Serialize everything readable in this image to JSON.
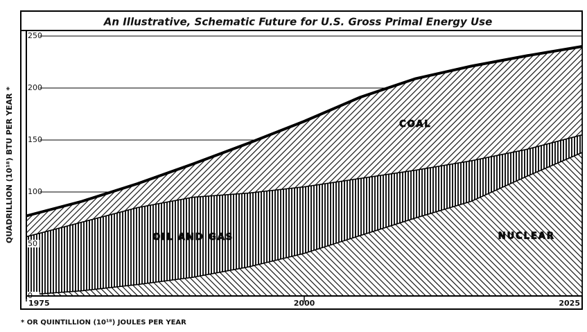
{
  "chart_data": {
    "type": "stacked_area",
    "title": "An Illustrative, Schematic Future for U.S. Gross Primal Energy Use",
    "y_label": "QUADRILLION (10¹⁸) BTU PER YEAR *",
    "footnote": "* OR QUINTILLION (10¹⁸) JOULES PER YEAR",
    "x": [
      1975,
      1980,
      1985,
      1990,
      1995,
      2000,
      2005,
      2010,
      2015,
      2020,
      2025
    ],
    "series": [
      {
        "name": "NUCLEAR",
        "color": "#000000",
        "pattern": "back-diagonal",
        "values": [
          1,
          5,
          11,
          18,
          28,
          41,
          58,
          75,
          91,
          115,
          138
        ]
      },
      {
        "name": "OIL AND GAS",
        "color": "#000000",
        "pattern": "vertical",
        "values": [
          56,
          66,
          74,
          77,
          71,
          64,
          55,
          46,
          39,
          26,
          17
        ]
      },
      {
        "name": "COAL",
        "color": "#000000",
        "pattern": "diagonal",
        "values": [
          20,
          20,
          23,
          32,
          48,
          63,
          78,
          88,
          91,
          90,
          85
        ]
      }
    ],
    "xlim": [
      1975,
      2025
    ],
    "xticks": [
      1975,
      2000,
      2025
    ],
    "ylim": [
      0,
      250
    ],
    "yticks": [
      0,
      50,
      100,
      150,
      200,
      250
    ],
    "grid": true
  }
}
